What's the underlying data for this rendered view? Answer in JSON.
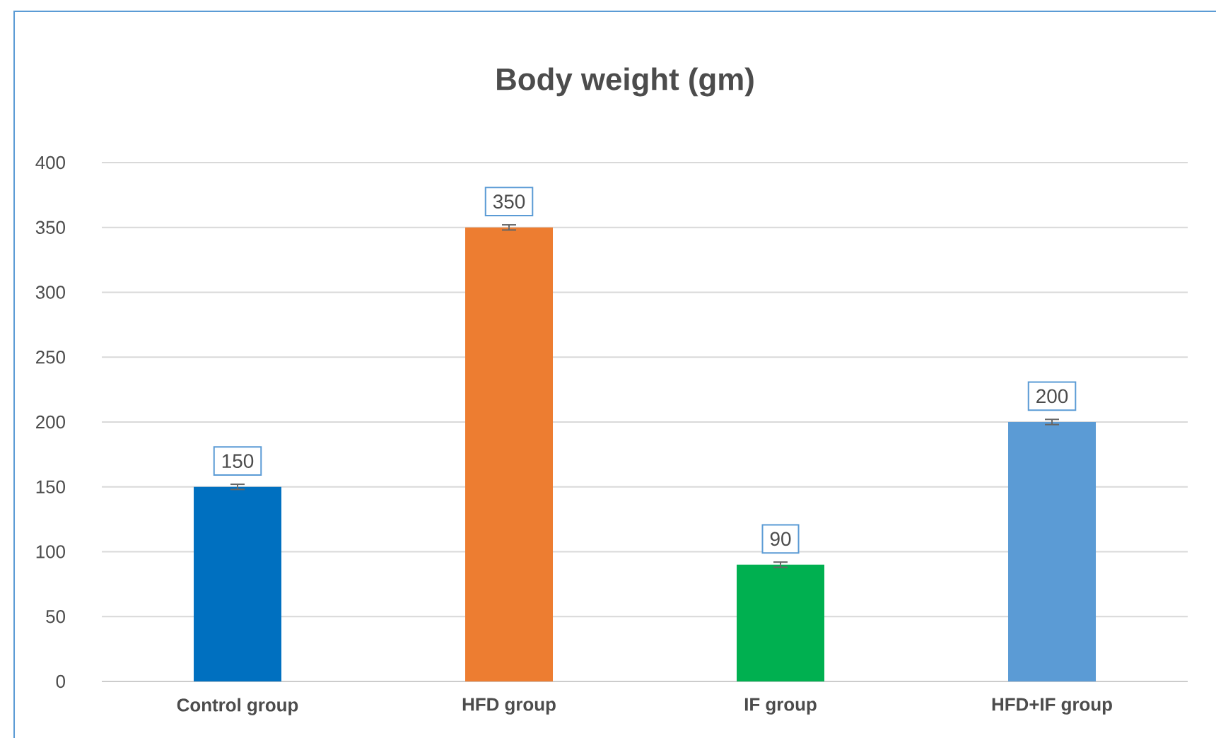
{
  "chart_data": {
    "type": "bar",
    "title": "Body weight (gm)",
    "categories": [
      "Control group",
      "HFD group",
      "IF group",
      "HFD+IF group"
    ],
    "values": [
      150,
      350,
      90,
      200
    ],
    "colors": [
      "#0070c0",
      "#ed7d31",
      "#00b050",
      "#5b9bd5"
    ],
    "errors": [
      2,
      2,
      2,
      2
    ],
    "ylim": [
      0,
      400
    ],
    "yticks": [
      0,
      50,
      100,
      150,
      200,
      250,
      300,
      350,
      400
    ],
    "grid": "y",
    "data_labels": true
  }
}
